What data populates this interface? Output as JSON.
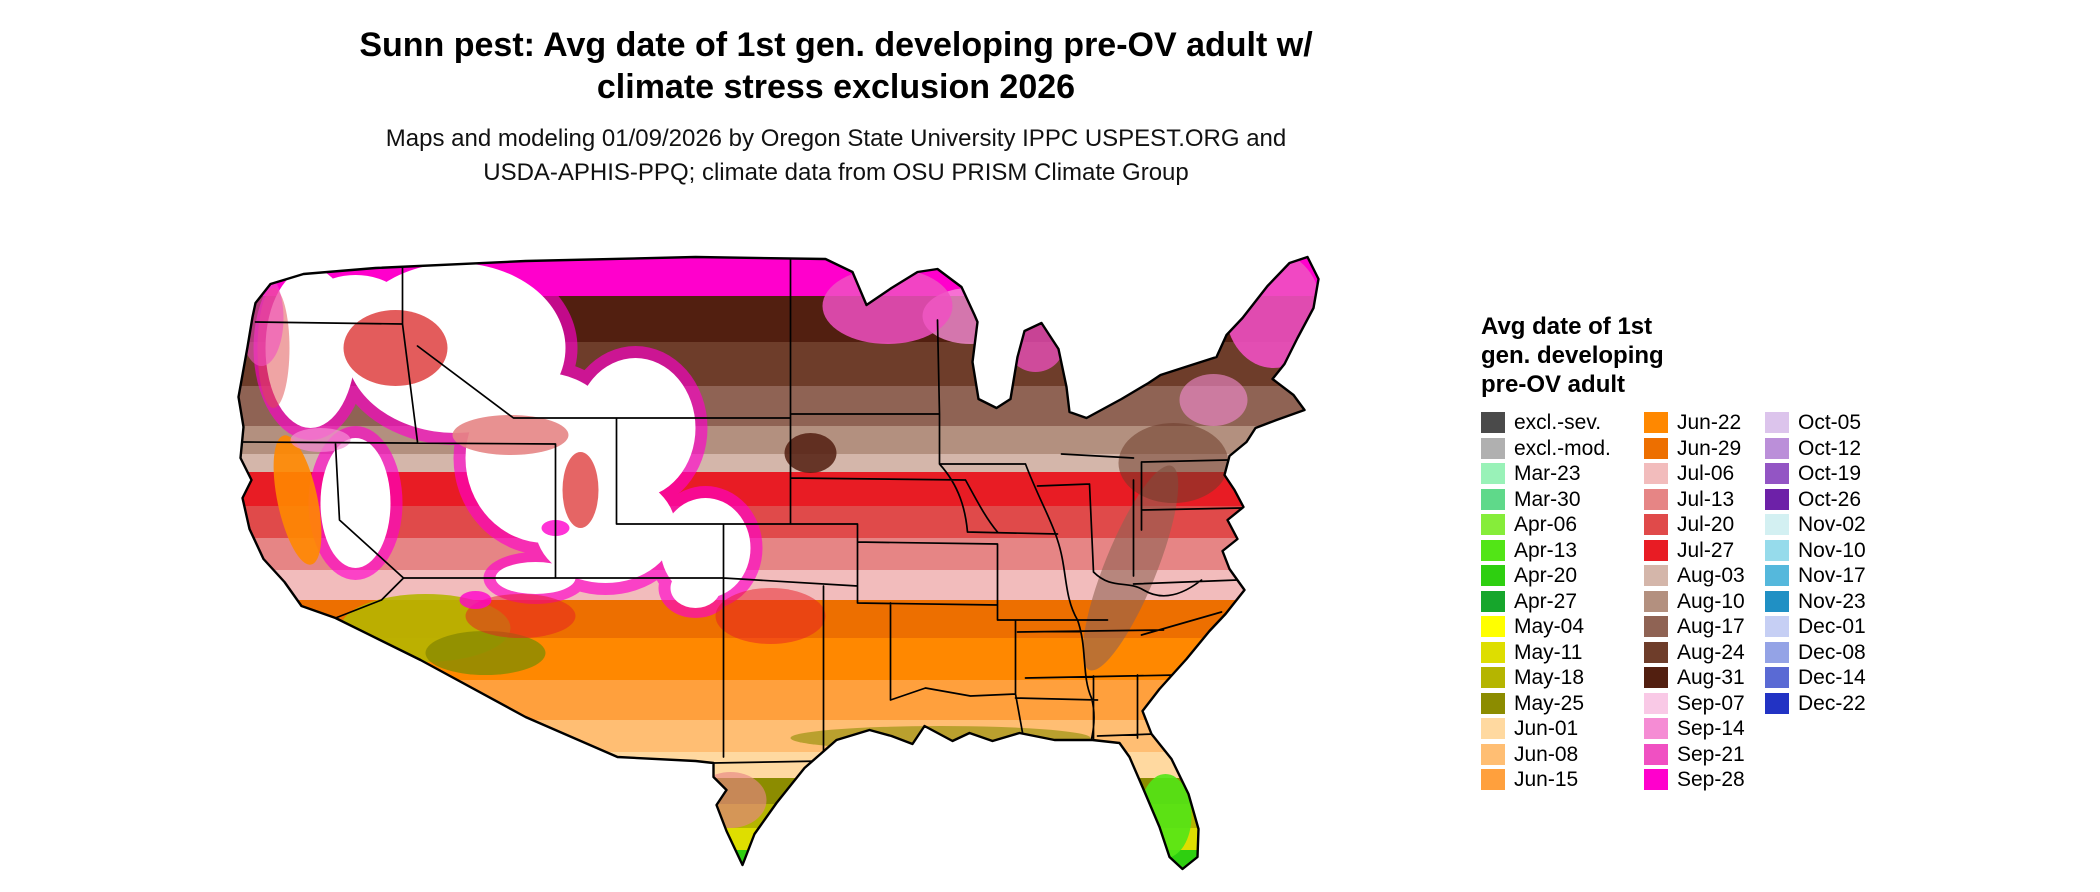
{
  "title": {
    "line1": "Sunn pest: Avg date of 1st gen. developing pre-OV adult w/",
    "line2": "climate stress exclusion 2026"
  },
  "subtitle": {
    "line1": "Maps and modeling 01/09/2026 by Oregon State University IPPC USPEST.ORG and",
    "line2": "USDA-APHIS-PPQ; climate data from OSU PRISM Climate Group"
  },
  "legend": {
    "title_lines": [
      "Avg date of 1st",
      "gen. developing",
      "pre-OV adult"
    ],
    "columns": [
      {
        "entries": [
          {
            "label": "excl.-sev.",
            "color": "#4a4a4a"
          },
          {
            "label": "excl.-mod.",
            "color": "#b0b0b0"
          },
          {
            "label": "Mar-23",
            "color": "#99f2b8"
          },
          {
            "label": "Mar-30",
            "color": "#5fd98a"
          },
          {
            "label": "Apr-06",
            "color": "#86ed3a"
          },
          {
            "label": "Apr-13",
            "color": "#52e516"
          },
          {
            "label": "Apr-20",
            "color": "#2ecf10"
          },
          {
            "label": "Apr-27",
            "color": "#16a62c"
          },
          {
            "label": "May-04",
            "color": "#ffff00"
          },
          {
            "label": "May-11",
            "color": "#dede00"
          },
          {
            "label": "May-18",
            "color": "#b5b500"
          },
          {
            "label": "May-25",
            "color": "#8c8c00"
          },
          {
            "label": "Jun-01",
            "color": "#ffd9a0"
          },
          {
            "label": "Jun-08",
            "color": "#ffbe73"
          },
          {
            "label": "Jun-15",
            "color": "#ffa03d"
          }
        ]
      },
      {
        "entries": [
          {
            "label": "Jun-22",
            "color": "#ff8800"
          },
          {
            "label": "Jun-29",
            "color": "#ed6f00"
          },
          {
            "label": "Jul-06",
            "color": "#f2bcbc"
          },
          {
            "label": "Jul-13",
            "color": "#e68585"
          },
          {
            "label": "Jul-20",
            "color": "#e04a4a"
          },
          {
            "label": "Jul-27",
            "color": "#e81c24"
          },
          {
            "label": "Aug-03",
            "color": "#d4b6aa"
          },
          {
            "label": "Aug-10",
            "color": "#b3907f"
          },
          {
            "label": "Aug-17",
            "color": "#8f6354"
          },
          {
            "label": "Aug-24",
            "color": "#6e3d2a"
          },
          {
            "label": "Aug-31",
            "color": "#521f10"
          },
          {
            "label": "Sep-07",
            "color": "#f9c9e6"
          },
          {
            "label": "Sep-14",
            "color": "#f58cd4"
          },
          {
            "label": "Sep-21",
            "color": "#f050c2"
          },
          {
            "label": "Sep-28",
            "color": "#ff00cc"
          }
        ]
      },
      {
        "entries": [
          {
            "label": "Oct-05",
            "color": "#dcc4ec"
          },
          {
            "label": "Oct-12",
            "color": "#bb8fd9"
          },
          {
            "label": "Oct-19",
            "color": "#9355c4"
          },
          {
            "label": "Oct-26",
            "color": "#6d21a8"
          },
          {
            "label": "Nov-02",
            "color": "#d3f0f2"
          },
          {
            "label": "Nov-10",
            "color": "#96dbeb"
          },
          {
            "label": "Nov-17",
            "color": "#55b8dc"
          },
          {
            "label": "Nov-23",
            "color": "#2090c4"
          },
          {
            "label": "Dec-01",
            "color": "#c6cff4"
          },
          {
            "label": "Dec-08",
            "color": "#94a3e6"
          },
          {
            "label": "Dec-14",
            "color": "#5a6ad4"
          },
          {
            "label": "Dec-22",
            "color": "#2233c4"
          }
        ]
      }
    ]
  },
  "map": {
    "background": "#ffffff",
    "outline_color": "#000000"
  }
}
